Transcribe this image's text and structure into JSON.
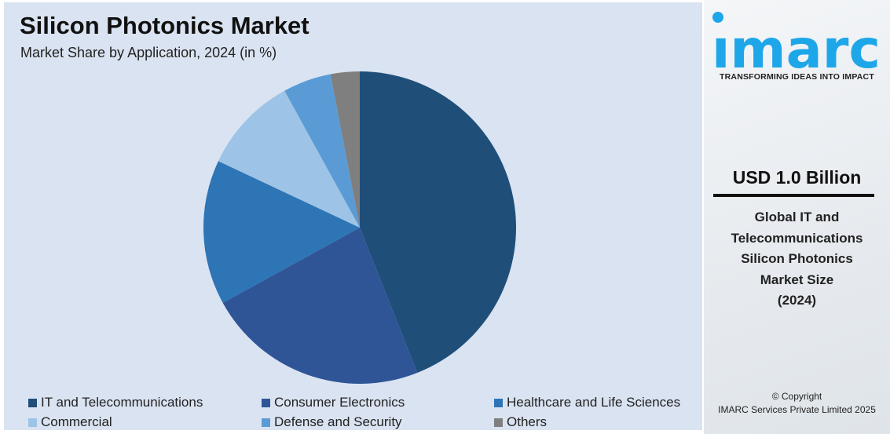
{
  "header": {
    "title": "Silicon Photonics Market",
    "subtitle": "Market Share by Application, 2024 (in %)"
  },
  "chart_data": {
    "type": "pie",
    "title": "Silicon Photonics Market",
    "subtitle": "Market Share by Application, 2024 (in %)",
    "categories": [
      "IT and Telecommunications",
      "Consumer Electronics",
      "Healthcare and Life Sciences",
      "Commercial",
      "Defense and Security",
      "Others"
    ],
    "values": [
      44,
      23,
      15,
      10,
      5,
      3
    ],
    "colors": [
      "#1f4e79",
      "#2f5597",
      "#2e75b6",
      "#9dc3e6",
      "#5b9bd5",
      "#7f7f7f"
    ],
    "start": "top, clockwise",
    "legend": "bottom"
  },
  "side": {
    "logo_text": "imarc",
    "tagline": "TRANSFORMING IDEAS INTO IMPACT",
    "value": "USD 1.0 Billion",
    "description_lines": [
      "Global IT and",
      "Telecommunications",
      "Silicon Photonics",
      "Market Size",
      "(2024)"
    ],
    "copyright_lines": [
      "© Copyright",
      "IMARC Services Private Limited 2025"
    ],
    "brand_color": "#1ea7e8"
  }
}
